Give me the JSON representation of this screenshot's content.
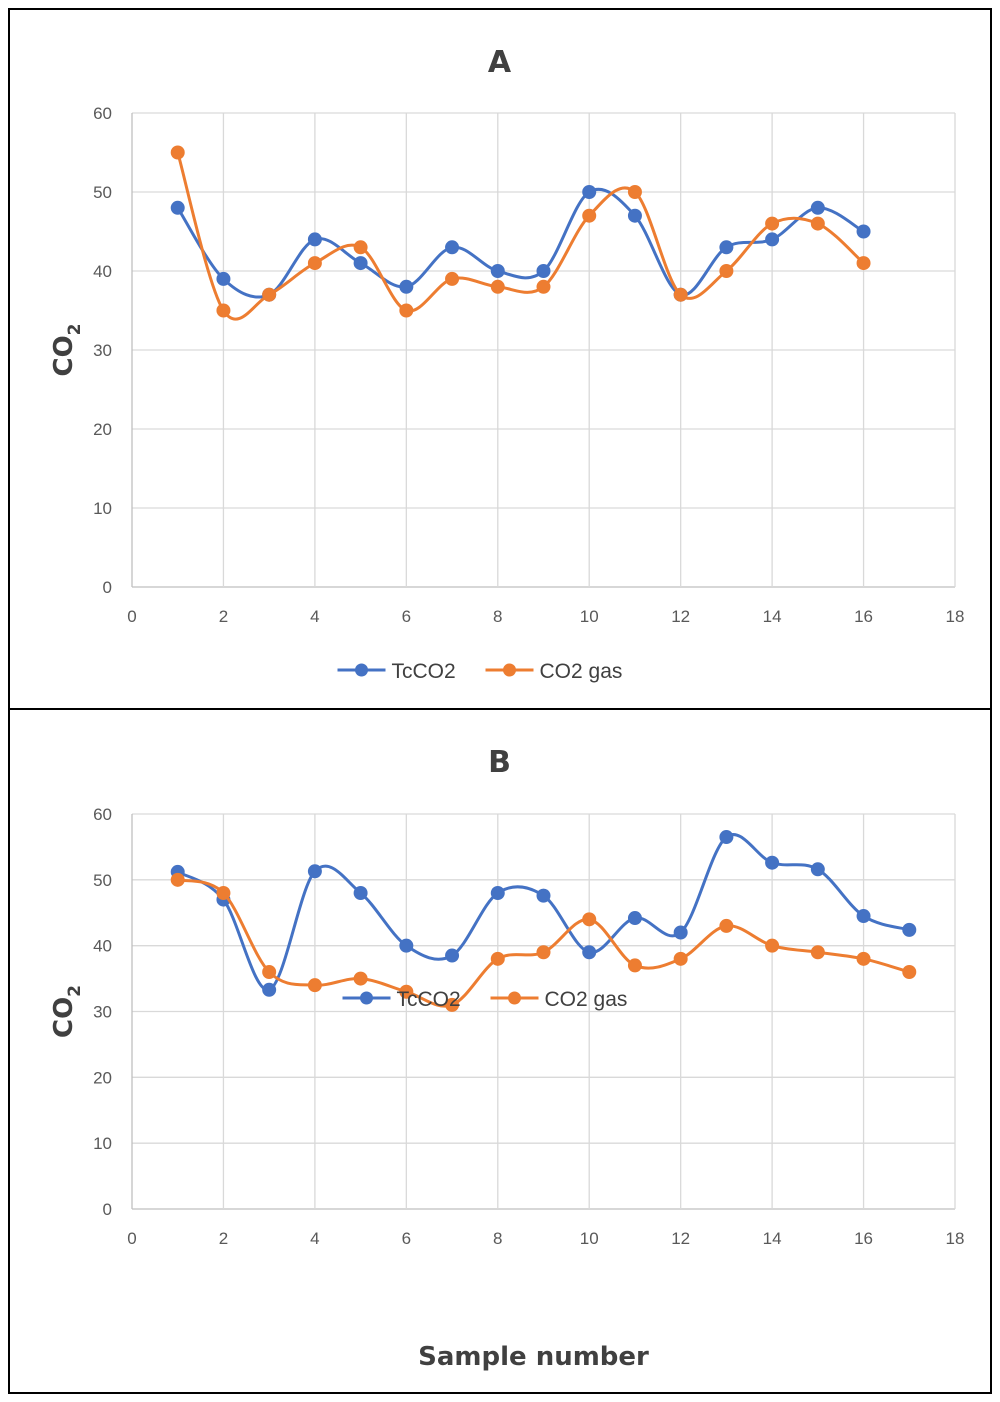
{
  "colors": {
    "series1": "#4472C4",
    "series2": "#ED7D31",
    "grid": "#D9D9D9",
    "axis": "#BFBFBF"
  },
  "chart_data": [
    {
      "type": "line",
      "title": "A",
      "ylabel_main": "CO",
      "ylabel_sub": "2",
      "xlabel": "",
      "xlim": [
        0,
        18
      ],
      "ylim": [
        0,
        60
      ],
      "xticks": [
        "0",
        "2",
        "4",
        "6",
        "8",
        "10",
        "12",
        "14",
        "16",
        "18"
      ],
      "yticks": [
        "0",
        "10",
        "20",
        "30",
        "40",
        "50",
        "60"
      ],
      "grid": "vertical and horizontal",
      "legend": "bottom",
      "smooth": true,
      "series": [
        {
          "name": "TcCO2",
          "color": "#4472C4",
          "x": [
            1,
            2,
            3,
            4,
            5,
            6,
            7,
            8,
            9,
            10,
            11,
            12,
            13,
            14,
            15,
            16
          ],
          "values": [
            48,
            39,
            37,
            44,
            41,
            38,
            43,
            40,
            40,
            50,
            47,
            37,
            43,
            44,
            48,
            45
          ]
        },
        {
          "name": "CO2 gas",
          "color": "#ED7D31",
          "x": [
            1,
            2,
            3,
            4,
            5,
            6,
            7,
            8,
            9,
            10,
            11,
            12,
            13,
            14,
            15,
            16
          ],
          "values": [
            55,
            35,
            37,
            41,
            43,
            35,
            39,
            38,
            38,
            47,
            50,
            37,
            40,
            46,
            46,
            41
          ]
        }
      ]
    },
    {
      "type": "line",
      "title": "B",
      "ylabel_main": "CO",
      "ylabel_sub": "2",
      "xlabel": "Sample number",
      "xlim": [
        0,
        18
      ],
      "ylim": [
        0,
        60
      ],
      "xticks": [
        "0",
        "2",
        "4",
        "6",
        "8",
        "10",
        "12",
        "14",
        "16",
        "18"
      ],
      "yticks": [
        "0",
        "10",
        "20",
        "30",
        "40",
        "50",
        "60"
      ],
      "grid": "vertical and horizontal",
      "legend": "bottom",
      "smooth": true,
      "series": [
        {
          "name": "TcCO2",
          "color": "#4472C4",
          "x": [
            1,
            2,
            3,
            4,
            5,
            6,
            7,
            8,
            9,
            10,
            11,
            12,
            13,
            14,
            15,
            16,
            17
          ],
          "values": [
            51.2,
            47,
            33.3,
            51.3,
            48,
            40,
            38.5,
            48,
            47.6,
            39,
            44.2,
            42,
            56.5,
            52.6,
            51.6,
            44.5,
            42.4
          ]
        },
        {
          "name": "CO2 gas",
          "color": "#ED7D31",
          "x": [
            1,
            2,
            3,
            4,
            5,
            6,
            7,
            8,
            9,
            10,
            11,
            12,
            13,
            14,
            15,
            16,
            17
          ],
          "values": [
            50,
            48,
            36,
            34,
            35,
            33,
            31,
            38,
            39,
            44,
            37,
            38,
            43,
            40,
            39,
            38,
            36
          ]
        }
      ]
    }
  ]
}
